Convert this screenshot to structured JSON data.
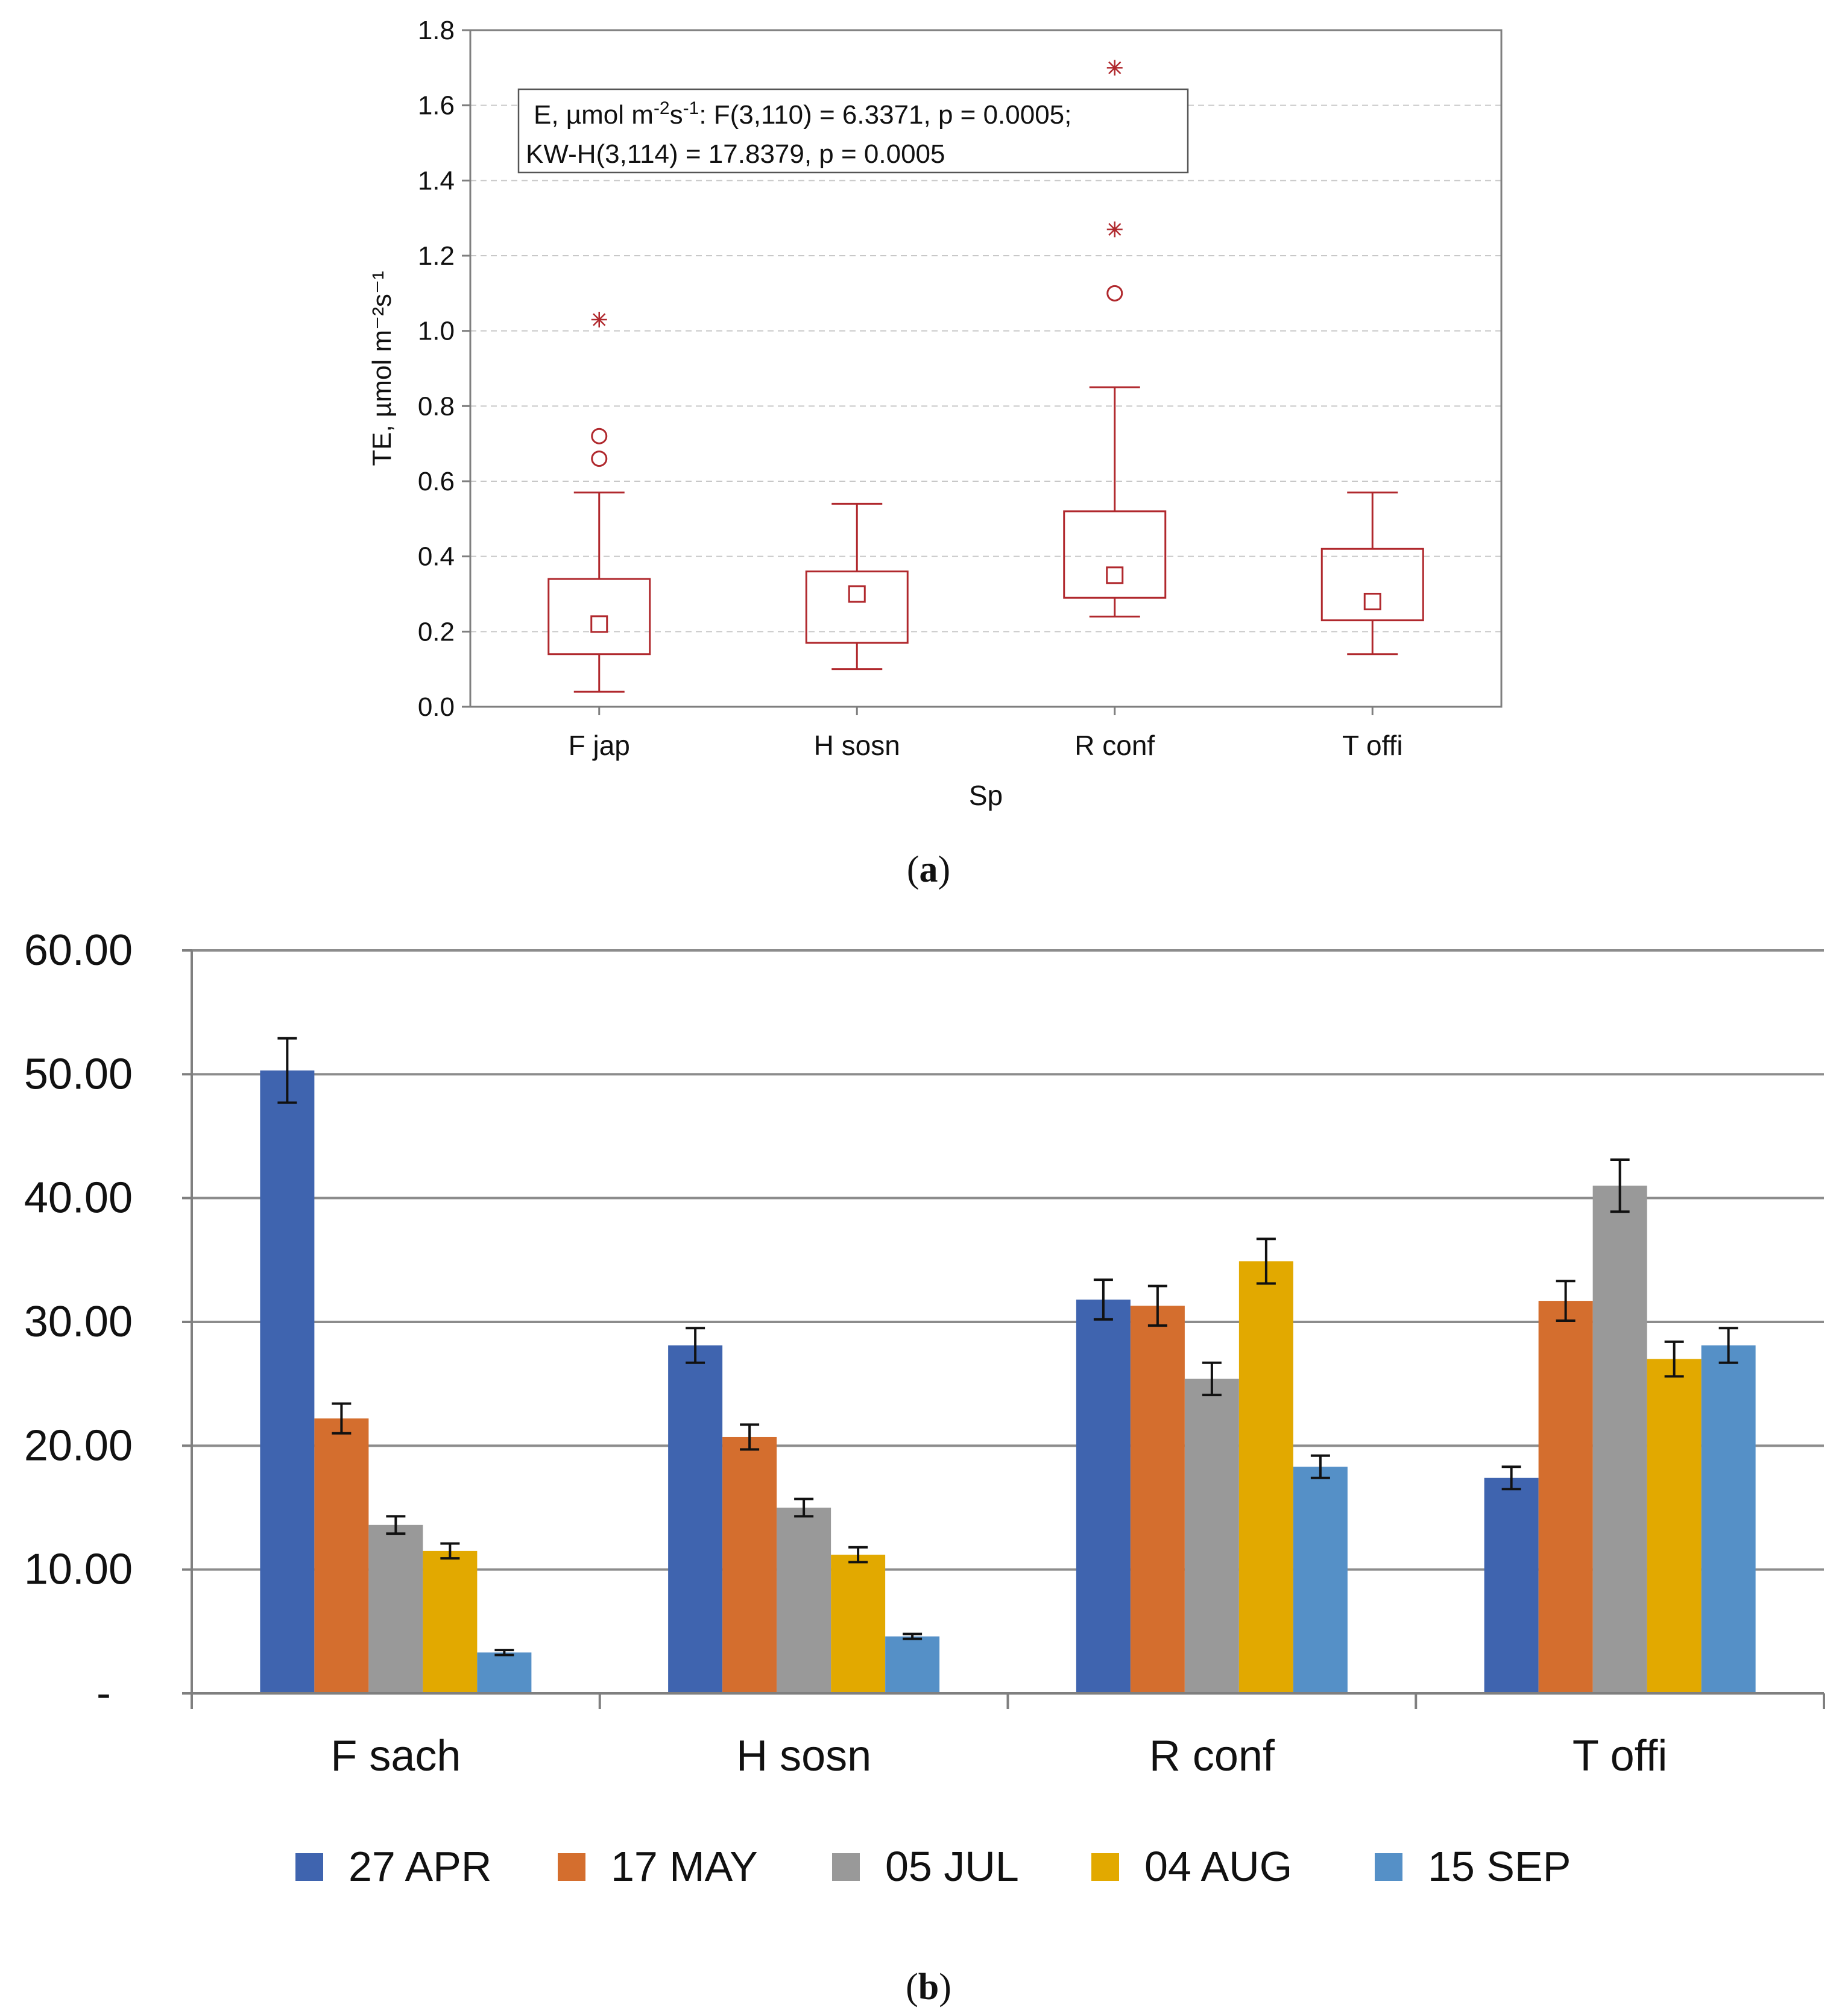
{
  "colors": {
    "box": "#b0282d",
    "grid_a": "#c8c8c8",
    "grid_b": "#8c8c8c",
    "axis": "#7f7f7f"
  },
  "chart_data": [
    {
      "type": "box",
      "panel_label": "(a)",
      "panel_letter": "a",
      "xlabel": "Sp",
      "ylabel": "TE, µmol m⁻²s⁻¹",
      "ylim": [
        0.0,
        1.8
      ],
      "yticks": [
        0.0,
        0.2,
        0.4,
        0.6,
        0.8,
        1.0,
        1.2,
        1.4,
        1.6,
        1.8
      ],
      "ytick_labels": [
        "0.0",
        "0.2",
        "0.4",
        "0.6",
        "0.8",
        "1.0",
        "1.2",
        "1.4",
        "1.6",
        "1.8"
      ],
      "grid": true,
      "annotation": {
        "line1_prefix": "E, µmol m",
        "line1_sup1": "-2",
        "line1_mid": "s",
        "line1_sup2": "-1",
        "line1_suffix": ":   F(3,110) = 6.3371, p = 0.0005;",
        "line2": "KW-H(3,114) = 17.8379, p = 0.0005"
      },
      "categories": [
        "F jap",
        "H sosn",
        "R conf",
        "T offi"
      ],
      "boxes": [
        {
          "median": 0.22,
          "q1": 0.14,
          "q3": 0.34,
          "whisker_low": 0.04,
          "whisker_high": 0.57,
          "outliers": [
            0.66,
            0.72
          ],
          "extremes": [
            1.03
          ]
        },
        {
          "median": 0.3,
          "q1": 0.17,
          "q3": 0.36,
          "whisker_low": 0.1,
          "whisker_high": 0.54,
          "outliers": [],
          "extremes": []
        },
        {
          "median": 0.35,
          "q1": 0.29,
          "q3": 0.52,
          "whisker_low": 0.24,
          "whisker_high": 0.85,
          "outliers": [
            1.1
          ],
          "extremes": [
            1.27,
            1.7
          ]
        },
        {
          "median": 0.28,
          "q1": 0.23,
          "q3": 0.42,
          "whisker_low": 0.14,
          "whisker_high": 0.57,
          "outliers": [],
          "extremes": []
        }
      ]
    },
    {
      "type": "bar",
      "panel_label": "(b)",
      "panel_letter": "b",
      "xlabel": "",
      "ylabel": "",
      "ylim": [
        0,
        60
      ],
      "yticks": [
        0,
        10,
        20,
        30,
        40,
        50,
        60
      ],
      "ytick_labels": [
        "-",
        "10.00",
        "20.00",
        "30.00",
        "40.00",
        "50.00",
        "60.00"
      ],
      "grid": true,
      "legend_position": "bottom",
      "categories": [
        "F sach",
        "H sosn",
        "R conf",
        "T offi"
      ],
      "series": [
        {
          "name": "27 APR",
          "color": "#3f64af",
          "values": [
            50.3,
            28.1,
            31.8,
            17.4
          ],
          "errors": [
            2.6,
            1.4,
            1.6,
            0.9
          ]
        },
        {
          "name": "17 MAY",
          "color": "#d46e2e",
          "values": [
            22.2,
            20.7,
            31.3,
            31.7
          ],
          "errors": [
            1.2,
            1.0,
            1.6,
            1.6
          ]
        },
        {
          "name": "05 JUL",
          "color": "#999999",
          "values": [
            13.6,
            15.0,
            25.4,
            41.0
          ],
          "errors": [
            0.7,
            0.7,
            1.3,
            2.1
          ]
        },
        {
          "name": "04 AUG",
          "color": "#e2a900",
          "values": [
            11.5,
            11.2,
            34.9,
            27.0
          ],
          "errors": [
            0.6,
            0.6,
            1.8,
            1.4
          ]
        },
        {
          "name": "15 SEP",
          "color": "#5590c7",
          "values": [
            3.3,
            4.6,
            18.3,
            28.1
          ],
          "errors": [
            0.2,
            0.2,
            0.9,
            1.4
          ]
        }
      ]
    }
  ]
}
